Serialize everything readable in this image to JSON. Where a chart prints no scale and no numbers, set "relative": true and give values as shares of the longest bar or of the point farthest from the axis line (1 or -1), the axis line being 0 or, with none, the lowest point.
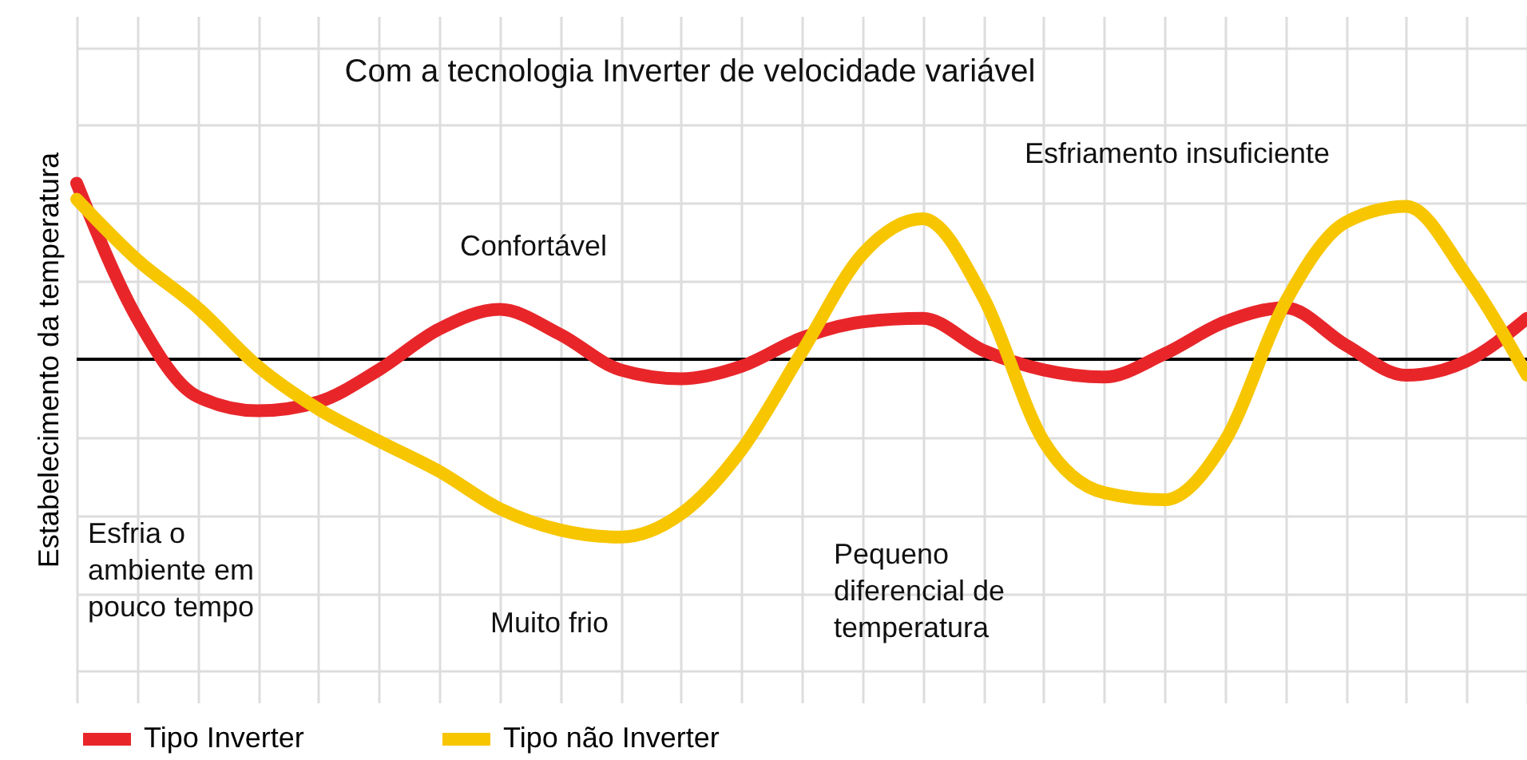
{
  "chart_data": {
    "type": "line",
    "relative": true,
    "title": "Com a tecnologia Inverter de velocidade variável",
    "ylabel": "Estabelecimento da temperatura",
    "categories": [
      null,
      null,
      null,
      null,
      null,
      null,
      null,
      null,
      null,
      null,
      null,
      null,
      null,
      null,
      null,
      null,
      null,
      null,
      null,
      null,
      null,
      null,
      null,
      null,
      null
    ],
    "series": [
      {
        "name": "Tipo Inverter",
        "color": "#e8262a",
        "values": [
          0.99,
          0.23,
          -0.21,
          -0.29,
          -0.24,
          -0.06,
          0.17,
          0.28,
          0.14,
          -0.06,
          -0.11,
          -0.04,
          0.12,
          0.21,
          0.23,
          0.05,
          -0.06,
          -0.1,
          0.03,
          0.21,
          0.29,
          0.08,
          -0.09,
          -0.01,
          0.23
        ]
      },
      {
        "name": "Tipo não Inverter",
        "color": "#f7c600",
        "values": [
          0.9,
          0.56,
          0.29,
          -0.04,
          -0.28,
          -0.46,
          -0.63,
          -0.84,
          -0.96,
          -1,
          -0.87,
          -0.51,
          0.04,
          0.59,
          0.79,
          0.35,
          -0.46,
          -0.75,
          -0.79,
          -0.46,
          0.32,
          0.77,
          0.86,
          0.47,
          -0.09
        ]
      }
    ],
    "annotations": [
      "Esfriamento insuficiente",
      "Confortável",
      "Muito frio",
      "Esfria o ambiente em pouco tempo",
      "Pequeno diferencial de temperatura"
    ],
    "grid": true,
    "legend": "bottom",
    "line_style": "solid",
    "marker": "none"
  }
}
